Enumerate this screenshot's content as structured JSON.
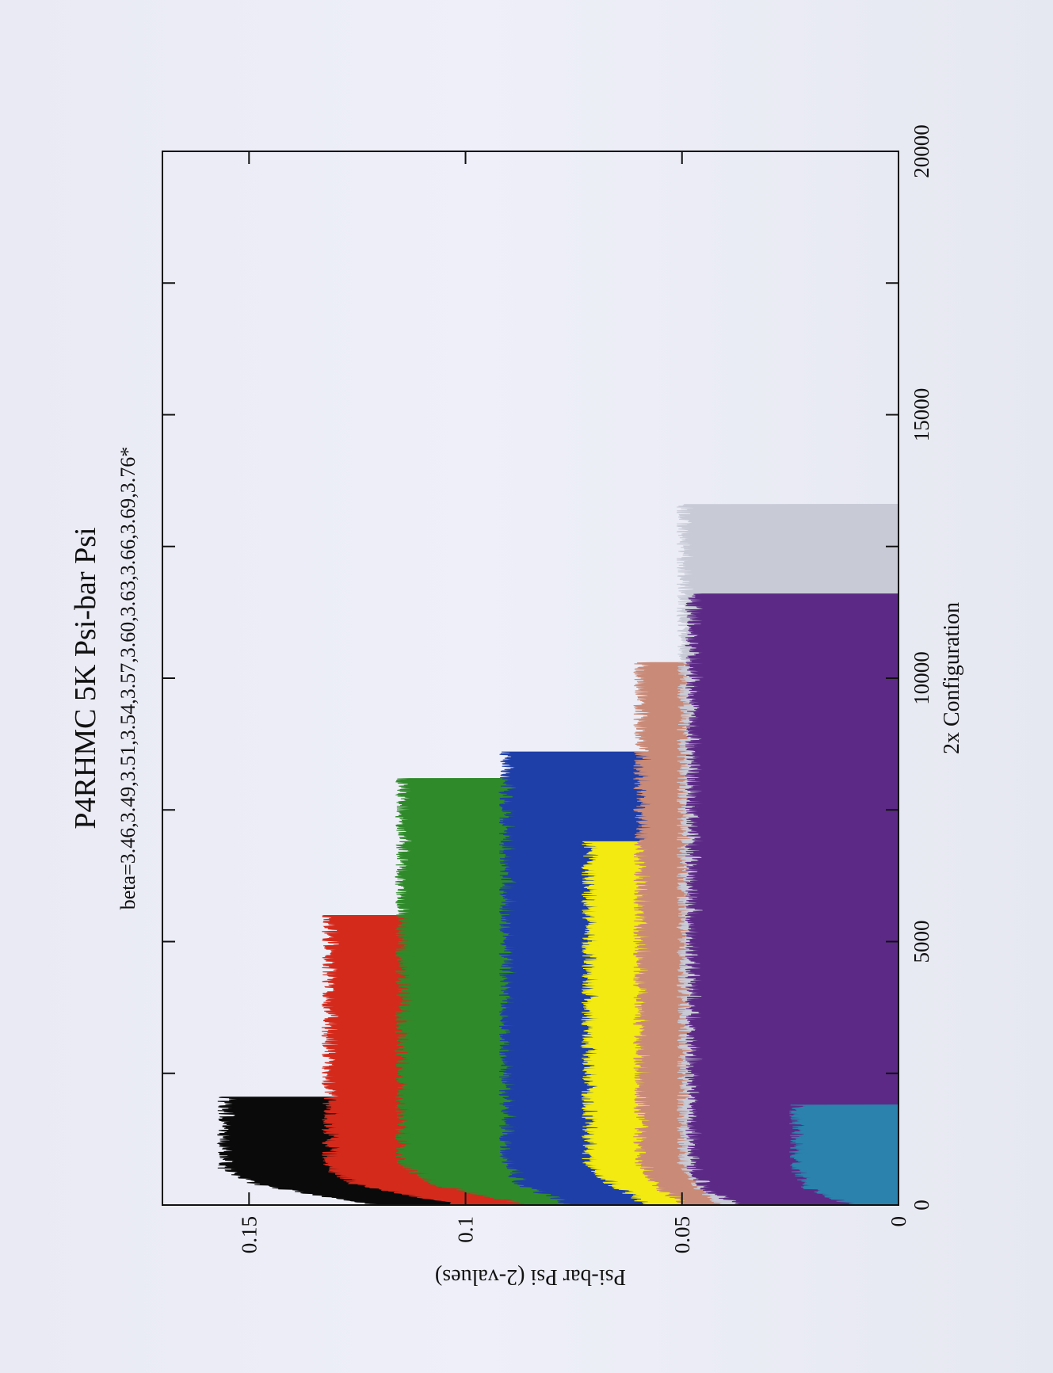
{
  "chart_data": {
    "type": "area",
    "title": "P4RHMC 5K Psi-bar Psi",
    "subtitle": "beta=3.46,3.49,3.51,3.54,3.57,3.60,3.63,3.66,3.69,3.76*",
    "xlabel": "2x Configuration",
    "ylabel": "Psi-bar Psi (2-values)",
    "xlim": [
      0,
      20000
    ],
    "ylim": [
      0,
      0.17
    ],
    "xticks": [
      "0",
      "5000",
      "10000",
      "15000",
      "20000"
    ],
    "yticks": [
      "0",
      "0.05",
      "0.1",
      "0.15"
    ],
    "grid": false,
    "orientation": "rotated 90° counter-clockwise on the page",
    "series": [
      {
        "color": "#0a0a0a",
        "x": [
          0,
          400,
          700,
          2050
        ],
        "y": [
          0.12,
          0.148,
          0.155,
          0.155
        ]
      },
      {
        "color": "#d42a1c",
        "x": [
          0,
          400,
          700,
          5500
        ],
        "y": [
          0.1,
          0.125,
          0.131,
          0.131
        ]
      },
      {
        "color": "#2f8a2a",
        "x": [
          0,
          400,
          800,
          8100
        ],
        "y": [
          0.085,
          0.107,
          0.114,
          0.114
        ]
      },
      {
        "color": "#1f3fa8",
        "x": [
          0,
          400,
          900,
          8600
        ],
        "y": [
          0.075,
          0.087,
          0.09,
          0.09
        ]
      },
      {
        "color": "#f2ea10",
        "x": [
          0,
          400,
          800,
          6900
        ],
        "y": [
          0.057,
          0.066,
          0.071,
          0.071
        ]
      },
      {
        "color": "#c98a78",
        "x": [
          0,
          300,
          800,
          10300
        ],
        "y": [
          0.048,
          0.054,
          0.059,
          0.059
        ]
      },
      {
        "color": "#c8cad6",
        "x": [
          0,
          300,
          800,
          13300
        ],
        "y": [
          0.04,
          0.045,
          0.049,
          0.049
        ]
      },
      {
        "color": "#5c2a86",
        "x": [
          0,
          300,
          700,
          11600
        ],
        "y": [
          0.036,
          0.044,
          0.047,
          0.047
        ]
      },
      {
        "color": "#2a82ad",
        "x": [
          0,
          300,
          700,
          1900
        ],
        "y": [
          0.01,
          0.02,
          0.023,
          0.023
        ]
      }
    ]
  }
}
